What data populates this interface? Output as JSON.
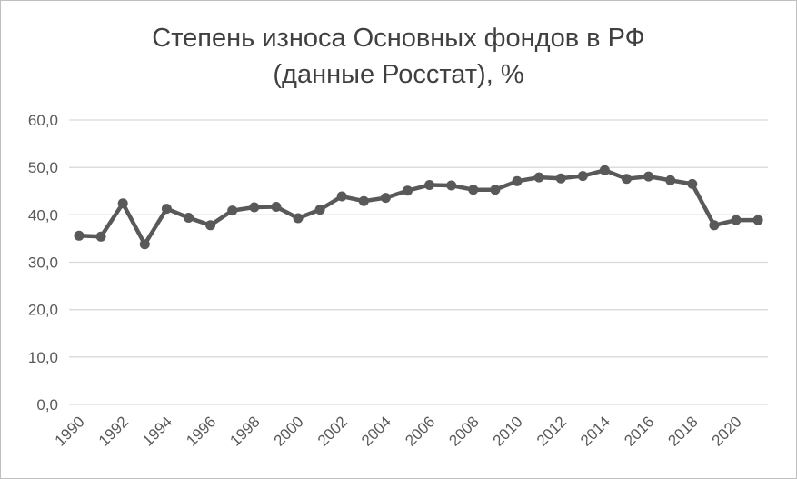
{
  "chart_data": {
    "type": "line",
    "title_line1": "Степень износа Основных фондов в РФ",
    "title_line2": "(данные Росстат), %",
    "xlabel": "",
    "ylabel": "",
    "ylim": [
      0,
      60
    ],
    "y_ticks": [
      "0,0",
      "10,0",
      "20,0",
      "30,0",
      "40,0",
      "50,0",
      "60,0"
    ],
    "x_tick_labels": [
      "1990",
      "1992",
      "1994",
      "1996",
      "1998",
      "2000",
      "2002",
      "2004",
      "2006",
      "2008",
      "2010",
      "2012",
      "2014",
      "2016",
      "2018",
      "2020"
    ],
    "grid": true,
    "legend": "none",
    "x": [
      1990,
      1991,
      1992,
      1993,
      1994,
      1995,
      1996,
      1997,
      1998,
      1999,
      2000,
      2001,
      2002,
      2003,
      2004,
      2005,
      2006,
      2007,
      2008,
      2009,
      2010,
      2011,
      2012,
      2013,
      2014,
      2015,
      2016,
      2017,
      2018,
      2019,
      2020,
      2021
    ],
    "values": [
      35.6,
      35.4,
      42.4,
      33.8,
      41.3,
      39.4,
      37.8,
      40.9,
      41.6,
      41.7,
      39.3,
      41.1,
      43.9,
      42.9,
      43.6,
      45.1,
      46.3,
      46.2,
      45.3,
      45.3,
      47.1,
      47.9,
      47.7,
      48.2,
      49.4,
      47.6,
      48.1,
      47.3,
      46.5,
      37.8,
      38.9,
      38.9
    ],
    "line_color": "#595959",
    "grid_color": "#d9d9d9"
  }
}
